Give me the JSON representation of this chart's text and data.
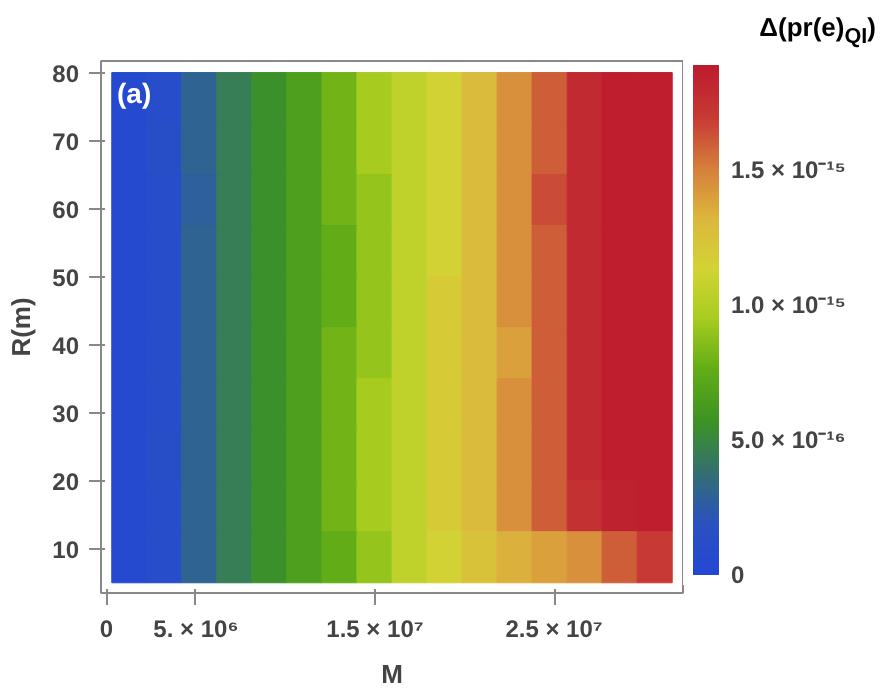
{
  "chart_data": {
    "type": "heatmap",
    "xlabel": "M",
    "ylabel": "R(m)",
    "legend_title": "Δ(pr(e)$_{QI}$)",
    "annotations": [
      "(a)"
    ],
    "x": [
      1280000.0,
      3230000.0,
      5190000.0,
      7150000.0,
      9100000.0,
      11060000.0,
      13020000.0,
      14970000.0,
      16930000.0,
      18880000.0,
      20840000.0,
      22800000.0,
      24750000.0,
      26710000.0,
      28660000.0,
      30620000.0
    ],
    "y": [
      76.25,
      68.75,
      61.25,
      53.75,
      46.25,
      38.75,
      31.25,
      23.75,
      16.25,
      8.75
    ],
    "cells": [
      [
        5e-17,
        1e-16,
        3e-16,
        4.5e-16,
        5.5e-16,
        6.5e-16,
        8e-16,
        9.5e-16,
        1.05e-15,
        1.15e-15,
        1.3e-15,
        1.45e-15,
        1.6e-15,
        1.8e-15,
        1.87e-15,
        1.87e-15
      ],
      [
        5e-17,
        1.2e-16,
        3e-16,
        4.5e-16,
        5.5e-16,
        6.5e-16,
        8e-16,
        9.5e-16,
        1.05e-15,
        1.15e-15,
        1.3e-15,
        1.45e-15,
        1.6e-15,
        1.8e-15,
        1.87e-15,
        1.87e-15
      ],
      [
        5e-17,
        1e-16,
        2.8e-16,
        4.5e-16,
        5.5e-16,
        6.5e-16,
        8e-16,
        9e-16,
        1.05e-15,
        1.15e-15,
        1.3e-15,
        1.45e-15,
        1.65e-15,
        1.8e-15,
        1.87e-15,
        1.87e-15
      ],
      [
        5e-17,
        1e-16,
        3e-16,
        4.5e-16,
        5.5e-16,
        6.5e-16,
        7.5e-16,
        9e-16,
        1.05e-15,
        1.15e-15,
        1.3e-15,
        1.45e-15,
        1.6e-15,
        1.8e-15,
        1.87e-15,
        1.87e-15
      ],
      [
        5e-17,
        1e-16,
        3e-16,
        4.5e-16,
        5.5e-16,
        6.5e-16,
        7.5e-16,
        9e-16,
        1.05e-15,
        1.2e-15,
        1.3e-15,
        1.45e-15,
        1.6e-15,
        1.8e-15,
        1.87e-15,
        1.87e-15
      ],
      [
        5e-17,
        1e-16,
        3e-16,
        4.5e-16,
        5.5e-16,
        6.5e-16,
        8e-16,
        9e-16,
        1.05e-15,
        1.2e-15,
        1.3e-15,
        1.4e-15,
        1.6e-15,
        1.8e-15,
        1.87e-15,
        1.87e-15
      ],
      [
        5e-17,
        1e-16,
        3e-16,
        4.5e-16,
        5.5e-16,
        6.5e-16,
        8e-16,
        9.5e-16,
        1.05e-15,
        1.2e-15,
        1.3e-15,
        1.45e-15,
        1.6e-15,
        1.8e-15,
        1.87e-15,
        1.87e-15
      ],
      [
        5e-17,
        1.2e-16,
        3e-16,
        4.5e-16,
        5.5e-16,
        6.5e-16,
        8e-16,
        9.5e-16,
        1.05e-15,
        1.2e-15,
        1.3e-15,
        1.45e-15,
        1.6e-15,
        1.8e-15,
        1.87e-15,
        1.87e-15
      ],
      [
        5e-17,
        1e-16,
        3e-16,
        4.5e-16,
        5.5e-16,
        6.5e-16,
        8e-16,
        9.5e-16,
        1.05e-15,
        1.2e-15,
        1.3e-15,
        1.45e-15,
        1.6e-15,
        1.75e-15,
        1.85e-15,
        1.87e-15
      ],
      [
        5e-17,
        1e-16,
        3e-16,
        4.5e-16,
        5.5e-16,
        6.5e-16,
        7.5e-16,
        9e-16,
        1.05e-15,
        1.15e-15,
        1.25e-15,
        1.35e-15,
        1.4e-15,
        1.45e-15,
        1.6e-15,
        1.7e-15
      ]
    ],
    "clim": [
      0,
      1.89e-15
    ],
    "cticks": [
      0,
      {
        "value": 5e-16,
        "label": "5.0 × 10⁻¹⁶"
      },
      {
        "value": 1e-15,
        "label": "1.0 × 10⁻¹⁵"
      },
      {
        "value": 1.5e-15,
        "label": "1.5 × 10⁻¹⁵"
      }
    ],
    "colors": [
      "#2447d4",
      "#2a52c0",
      "#33706f",
      "#3d9424",
      "#62ad16",
      "#a6cc1f",
      "#d2d434",
      "#dcb83c",
      "#d67e3c",
      "#c63a34",
      "#bd1c2e"
    ],
    "xlim": [
      -300000.0,
      32200000.0
    ],
    "ylim": [
      3.5,
      81.7
    ],
    "xticks": [
      0,
      {
        "value": 5000000.0,
        "label": "5. × 10⁶"
      },
      {
        "value": 15000000.0,
        "label": "1.5 × 10⁷"
      },
      {
        "value": 25000000.0,
        "label": "2.5 × 10⁷"
      }
    ],
    "yticks": [
      10,
      20,
      30,
      40,
      50,
      60,
      70,
      80
    ],
    "grid": false
  }
}
